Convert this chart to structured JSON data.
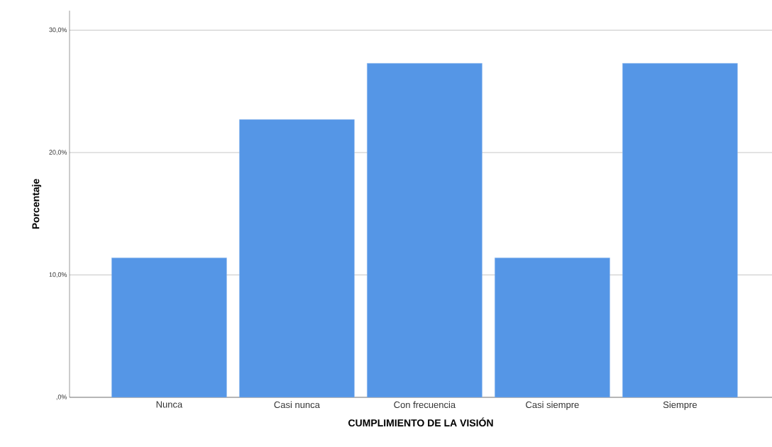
{
  "chart_data": {
    "type": "bar",
    "xlabel": "CUMPLIMIENTO DE LA VISIÓN",
    "ylabel": "Porcentaje",
    "categories": [
      "Nunca",
      "Casi nunca",
      "Con frecuencia",
      "Casi siempre",
      "Siempre"
    ],
    "values": [
      11.4,
      22.7,
      27.3,
      11.4,
      27.3
    ],
    "color": "#5596e6",
    "ylim": [
      0,
      31.6
    ],
    "yticks": [
      {
        "value": 0,
        "label": ",0%"
      },
      {
        "value": 10,
        "label": "10,0%"
      },
      {
        "value": 20,
        "label": "20,0%"
      },
      {
        "value": 30,
        "label": "30,0%"
      }
    ],
    "grid": "y"
  }
}
